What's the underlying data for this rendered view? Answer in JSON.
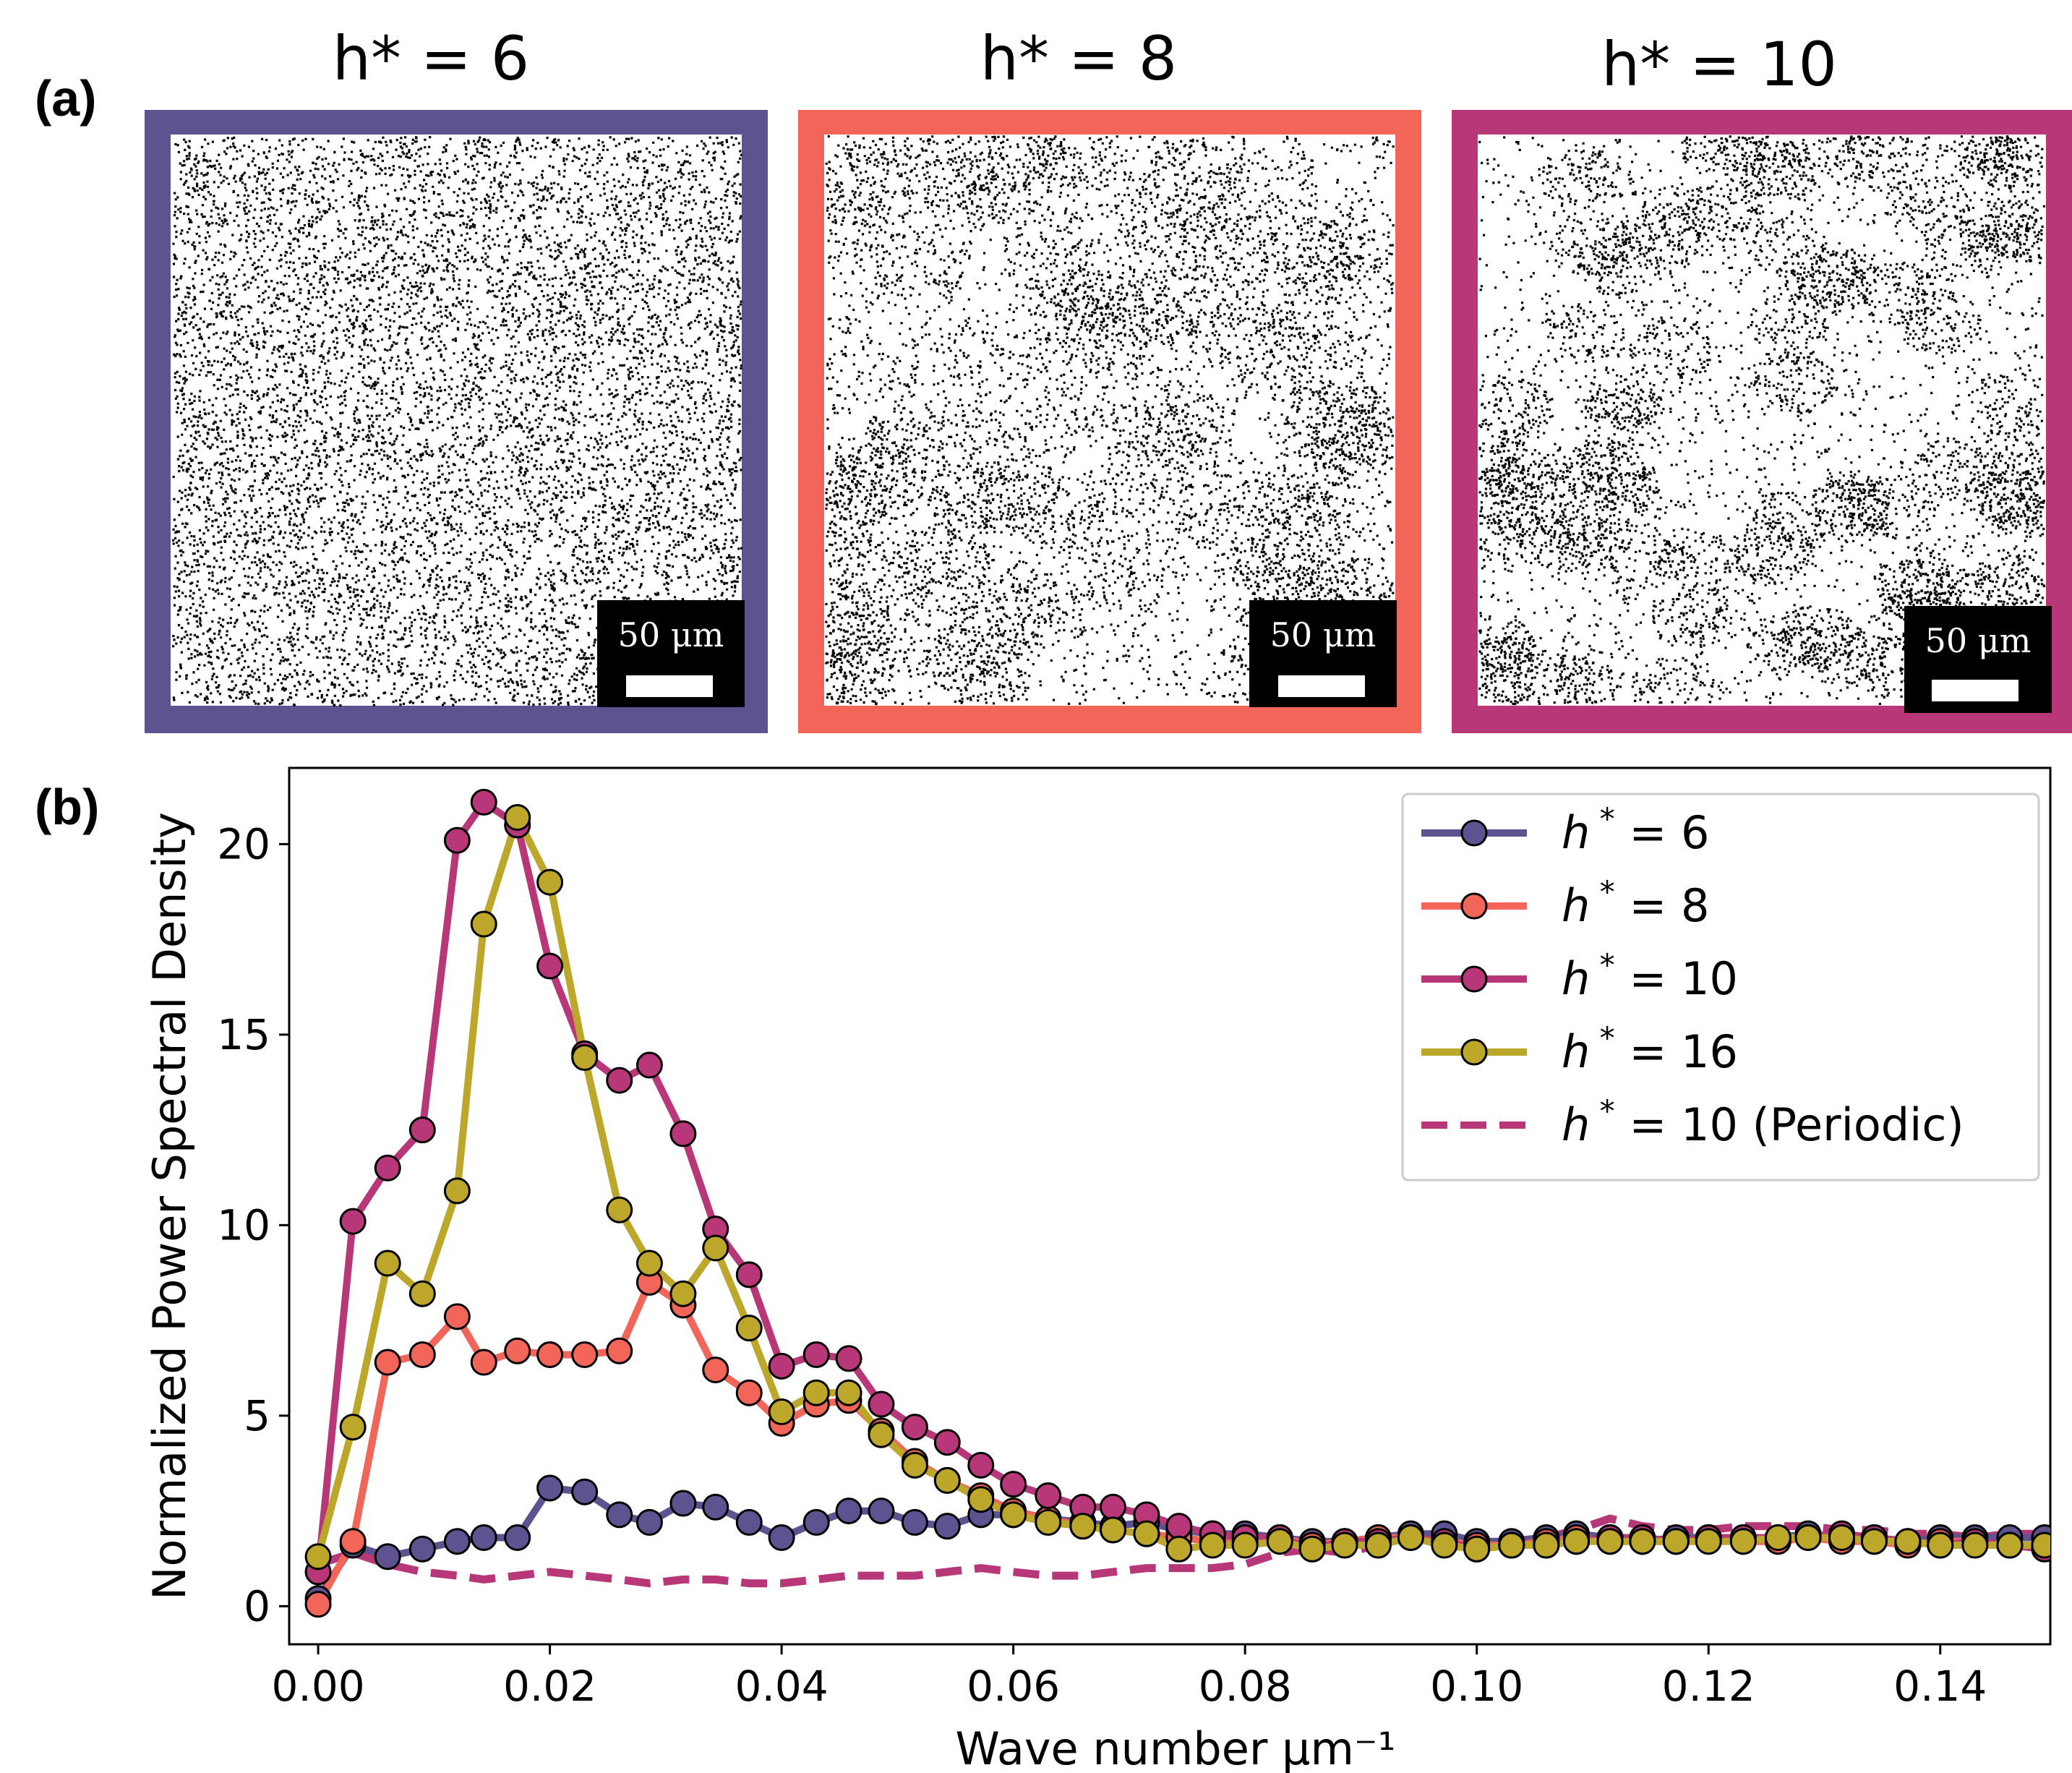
{
  "panel_a": {
    "label": "(a)",
    "images": [
      {
        "title": "h* = 6",
        "border_color": "#5e5390",
        "scale_label": "50 μm",
        "kind": "uniform"
      },
      {
        "title": "h* = 8",
        "border_color": "#f2665a",
        "scale_label": "50 μm",
        "kind": "clustered"
      },
      {
        "title": "h* = 10",
        "border_color": "#b73779",
        "scale_label": "50 μm",
        "kind": "strongly-clustered"
      }
    ]
  },
  "panel_b": {
    "label": "(b)"
  },
  "chart_data": {
    "type": "line",
    "xlabel": "Wave number μm⁻¹",
    "ylabel": "Normalized Power Spectral Density",
    "xlim": [
      -0.0025,
      0.1495
    ],
    "ylim": [
      -1.0,
      22.0
    ],
    "xticks": [
      0.0,
      0.02,
      0.04,
      0.06,
      0.08,
      0.1,
      0.12,
      0.14
    ],
    "xtick_labels": [
      "0.00",
      "0.02",
      "0.04",
      "0.06",
      "0.08",
      "0.10",
      "0.12",
      "0.14"
    ],
    "yticks": [
      0,
      5,
      10,
      15,
      20
    ],
    "ytick_labels": [
      "0",
      "5",
      "10",
      "15",
      "20"
    ],
    "legend_position": "top-right",
    "x": [
      0.0,
      0.003,
      0.006,
      0.009,
      0.012,
      0.0143,
      0.0172,
      0.02,
      0.023,
      0.026,
      0.0286,
      0.0315,
      0.0343,
      0.0372,
      0.04,
      0.043,
      0.0458,
      0.0486,
      0.0515,
      0.0543,
      0.0572,
      0.06,
      0.063,
      0.066,
      0.0686,
      0.0715,
      0.0743,
      0.0772,
      0.08,
      0.083,
      0.0858,
      0.0886,
      0.0915,
      0.0943,
      0.0972,
      0.1,
      0.103,
      0.106,
      0.1086,
      0.1115,
      0.1143,
      0.1172,
      0.12,
      0.123,
      0.126,
      0.1286,
      0.1315,
      0.1343,
      0.1372,
      0.14,
      0.143,
      0.146,
      0.149
    ],
    "series": [
      {
        "name": "h* = 6",
        "label_symbol": "h",
        "label_sup": "*",
        "label_rest": " = 6",
        "color": "#5e5390",
        "style": "solid",
        "markers": true,
        "values": [
          0.2,
          1.6,
          1.3,
          1.5,
          1.7,
          1.8,
          1.8,
          3.1,
          3.0,
          2.4,
          2.2,
          2.7,
          2.6,
          2.2,
          1.8,
          2.2,
          2.5,
          2.5,
          2.2,
          2.1,
          2.4,
          2.4,
          2.3,
          2.2,
          2.1,
          2.2,
          2.0,
          1.9,
          1.9,
          1.8,
          1.7,
          1.7,
          1.8,
          1.9,
          1.9,
          1.7,
          1.7,
          1.8,
          1.9,
          1.8,
          1.7,
          1.8,
          1.8,
          1.8,
          1.8,
          1.9,
          1.8,
          1.8,
          1.7,
          1.8,
          1.8,
          1.8,
          1.8
        ]
      },
      {
        "name": "h* = 8",
        "label_symbol": "h",
        "label_sup": "*",
        "label_rest": " = 8",
        "color": "#f2665a",
        "style": "solid",
        "markers": true,
        "values": [
          0.05,
          1.7,
          6.4,
          6.6,
          7.6,
          6.4,
          6.7,
          6.6,
          6.6,
          6.7,
          8.5,
          7.9,
          6.2,
          5.6,
          4.8,
          5.3,
          5.4,
          4.6,
          3.8,
          3.3,
          2.9,
          2.5,
          2.3,
          2.1,
          2.0,
          1.9,
          1.8,
          1.7,
          1.7,
          1.8,
          1.6,
          1.7,
          1.8,
          1.8,
          1.7,
          1.6,
          1.6,
          1.7,
          1.8,
          1.7,
          1.7,
          1.7,
          1.8,
          1.7,
          1.7,
          1.8,
          1.7,
          1.7,
          1.6,
          1.7,
          1.7,
          1.6,
          1.6
        ]
      },
      {
        "name": "h* = 10",
        "label_symbol": "h",
        "label_sup": "*",
        "label_rest": " = 10",
        "color": "#b73779",
        "style": "solid",
        "markers": true,
        "values": [
          0.9,
          10.1,
          11.5,
          12.5,
          20.1,
          21.1,
          20.5,
          16.8,
          14.5,
          13.8,
          14.2,
          12.4,
          9.9,
          8.7,
          6.3,
          6.6,
          6.5,
          5.3,
          4.7,
          4.3,
          3.7,
          3.2,
          2.9,
          2.6,
          2.6,
          2.4,
          2.1,
          1.9,
          1.8,
          1.8,
          1.5,
          1.7,
          1.7,
          1.8,
          1.7,
          1.5,
          1.6,
          1.6,
          1.7,
          1.8,
          1.8,
          1.7,
          1.8,
          1.8,
          1.8,
          1.8,
          1.9,
          1.8,
          1.7,
          1.6,
          1.7,
          1.6,
          1.5
        ]
      },
      {
        "name": "h* = 16",
        "label_symbol": "h",
        "label_sup": "*",
        "label_rest": " = 16",
        "color": "#bca72a",
        "style": "solid",
        "markers": true,
        "values": [
          1.3,
          4.7,
          9.0,
          8.2,
          10.9,
          17.9,
          20.7,
          19.0,
          14.4,
          10.4,
          9.0,
          8.2,
          9.4,
          7.3,
          5.1,
          5.6,
          5.6,
          4.5,
          3.7,
          3.3,
          2.8,
          2.4,
          2.2,
          2.1,
          2.0,
          1.9,
          1.5,
          1.6,
          1.6,
          1.7,
          1.5,
          1.6,
          1.6,
          1.8,
          1.6,
          1.5,
          1.6,
          1.6,
          1.7,
          1.7,
          1.7,
          1.7,
          1.7,
          1.7,
          1.8,
          1.8,
          1.8,
          1.7,
          1.7,
          1.6,
          1.6,
          1.6,
          1.6
        ]
      },
      {
        "name": "h* = 10 (Periodic)",
        "label_symbol": "h",
        "label_sup": "*",
        "label_rest": " = 10 (Periodic)",
        "color": "#b73779",
        "style": "dashed",
        "markers": false,
        "values": [
          1.1,
          1.4,
          1.1,
          0.9,
          0.8,
          0.7,
          0.8,
          0.9,
          0.8,
          0.7,
          0.6,
          0.7,
          0.7,
          0.6,
          0.6,
          0.7,
          0.8,
          0.8,
          0.8,
          0.9,
          1.0,
          0.9,
          0.8,
          0.8,
          0.9,
          1.0,
          1.0,
          1.0,
          1.1,
          1.4,
          1.5,
          1.4,
          1.6,
          1.8,
          1.7,
          1.6,
          1.7,
          1.8,
          2.0,
          2.3,
          2.1,
          2.0,
          2.0,
          2.1,
          2.1,
          2.1,
          2.0,
          2.0,
          1.9,
          1.9,
          1.8,
          1.9,
          1.9
        ]
      }
    ]
  }
}
